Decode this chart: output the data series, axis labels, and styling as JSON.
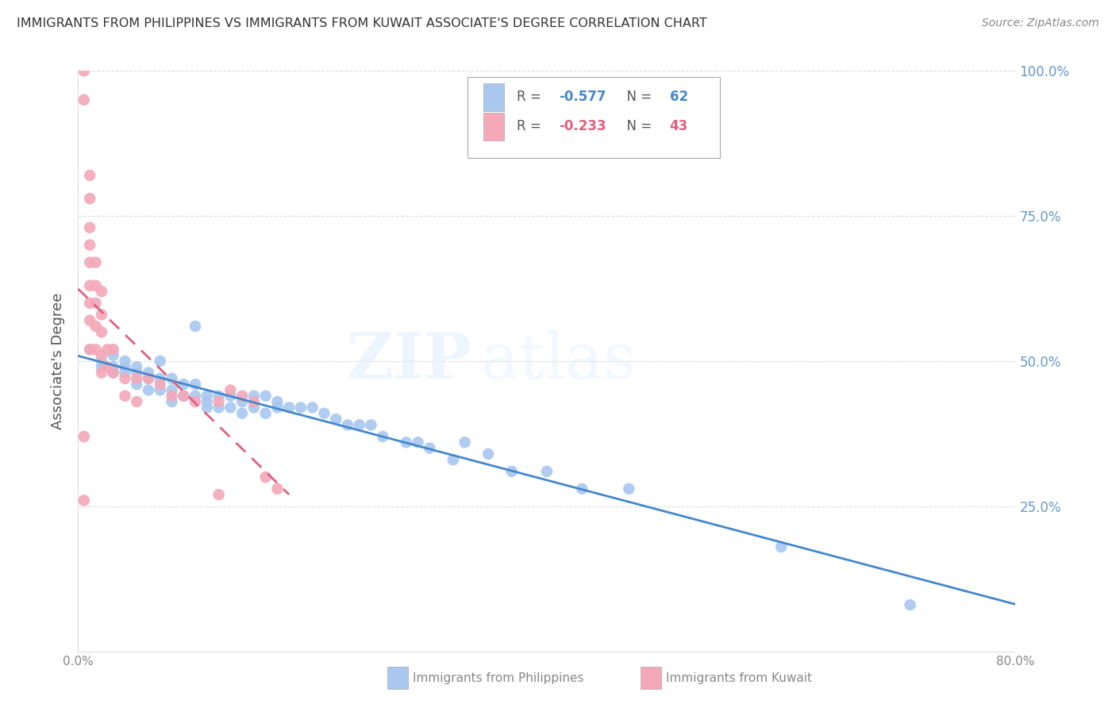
{
  "title": "IMMIGRANTS FROM PHILIPPINES VS IMMIGRANTS FROM KUWAIT ASSOCIATE'S DEGREE CORRELATION CHART",
  "source": "Source: ZipAtlas.com",
  "ylabel": "Associate's Degree",
  "watermark_zip": "ZIP",
  "watermark_atlas": "atlas",
  "xmin": 0.0,
  "xmax": 0.8,
  "ymin": 0.0,
  "ymax": 1.0,
  "yticks": [
    0.0,
    0.25,
    0.5,
    0.75,
    1.0
  ],
  "ytick_labels": [
    "",
    "25.0%",
    "50.0%",
    "75.0%",
    "100.0%"
  ],
  "xticks": [
    0.0,
    0.2,
    0.4,
    0.6,
    0.8
  ],
  "xtick_labels": [
    "0.0%",
    "",
    "",
    "",
    "80.0%"
  ],
  "philippines_R": -0.577,
  "philippines_N": 62,
  "kuwait_R": -0.233,
  "kuwait_N": 43,
  "philippines_color": "#a8c8f0",
  "kuwait_color": "#f4a8b8",
  "philippines_line_color": "#4488cc",
  "kuwait_line_color": "#e06080",
  "kuwait_line_dash": [
    6,
    3
  ],
  "background_color": "#ffffff",
  "grid_color": "#cccccc",
  "right_label_color": "#6699cc",
  "title_color": "#333333",
  "philippines_x": [
    0.01,
    0.02,
    0.02,
    0.03,
    0.03,
    0.03,
    0.04,
    0.04,
    0.04,
    0.05,
    0.05,
    0.05,
    0.06,
    0.06,
    0.06,
    0.07,
    0.07,
    0.07,
    0.08,
    0.08,
    0.08,
    0.09,
    0.09,
    0.1,
    0.1,
    0.1,
    0.11,
    0.11,
    0.11,
    0.12,
    0.12,
    0.13,
    0.13,
    0.14,
    0.14,
    0.15,
    0.15,
    0.16,
    0.16,
    0.17,
    0.17,
    0.18,
    0.19,
    0.2,
    0.21,
    0.22,
    0.23,
    0.24,
    0.25,
    0.26,
    0.28,
    0.29,
    0.3,
    0.32,
    0.33,
    0.35,
    0.37,
    0.4,
    0.43,
    0.47,
    0.6,
    0.71
  ],
  "philippines_y": [
    0.52,
    0.5,
    0.49,
    0.51,
    0.49,
    0.48,
    0.5,
    0.49,
    0.48,
    0.49,
    0.48,
    0.46,
    0.48,
    0.47,
    0.45,
    0.5,
    0.47,
    0.45,
    0.47,
    0.45,
    0.43,
    0.46,
    0.44,
    0.46,
    0.44,
    0.56,
    0.44,
    0.43,
    0.42,
    0.44,
    0.42,
    0.44,
    0.42,
    0.43,
    0.41,
    0.44,
    0.42,
    0.44,
    0.41,
    0.43,
    0.42,
    0.42,
    0.42,
    0.42,
    0.41,
    0.4,
    0.39,
    0.39,
    0.39,
    0.37,
    0.36,
    0.36,
    0.35,
    0.33,
    0.36,
    0.34,
    0.31,
    0.31,
    0.28,
    0.28,
    0.18,
    0.08
  ],
  "kuwait_x": [
    0.005,
    0.005,
    0.005,
    0.01,
    0.01,
    0.01,
    0.01,
    0.01,
    0.01,
    0.01,
    0.01,
    0.01,
    0.015,
    0.015,
    0.015,
    0.015,
    0.015,
    0.02,
    0.02,
    0.02,
    0.02,
    0.02,
    0.025,
    0.025,
    0.03,
    0.03,
    0.04,
    0.04,
    0.05,
    0.05,
    0.06,
    0.07,
    0.08,
    0.09,
    0.1,
    0.12,
    0.13,
    0.14,
    0.15,
    0.16,
    0.17,
    0.005,
    0.12
  ],
  "kuwait_y": [
    1.0,
    0.95,
    0.37,
    0.82,
    0.78,
    0.73,
    0.7,
    0.67,
    0.63,
    0.6,
    0.57,
    0.52,
    0.67,
    0.63,
    0.6,
    0.56,
    0.52,
    0.62,
    0.58,
    0.55,
    0.51,
    0.48,
    0.52,
    0.49,
    0.52,
    0.48,
    0.47,
    0.44,
    0.47,
    0.43,
    0.47,
    0.46,
    0.44,
    0.44,
    0.43,
    0.43,
    0.45,
    0.44,
    0.43,
    0.3,
    0.28,
    0.26,
    0.27
  ]
}
